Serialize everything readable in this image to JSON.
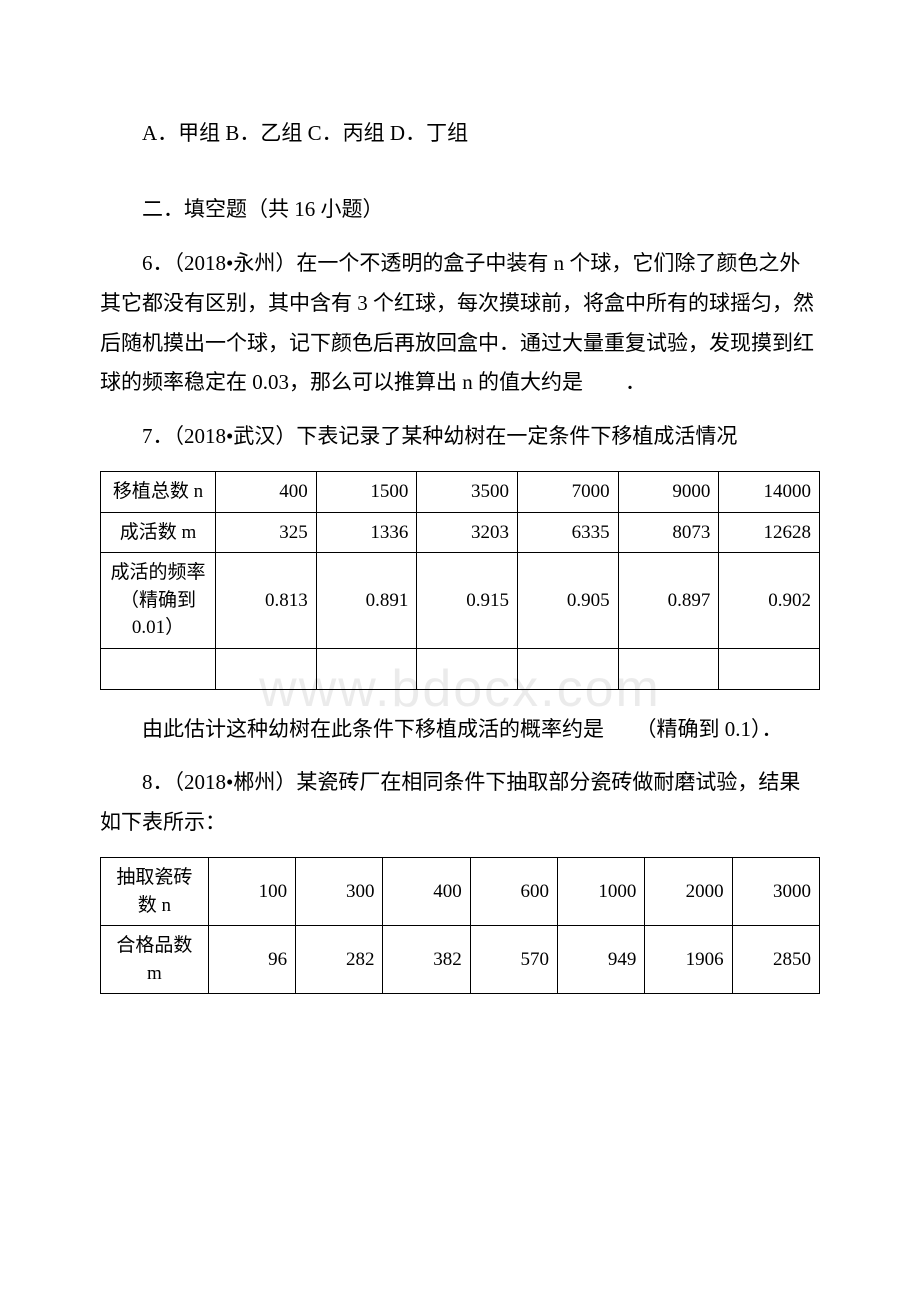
{
  "top_line": "A．甲组 B．乙组 C．丙组 D．丁组",
  "section2_heading": "二．填空题（共 16 小题）",
  "q6": "6．（2018•永州）在一个不透明的盒子中装有 n 个球，它们除了颜色之外其它都没有区别，其中含有 3 个红球，每次摸球前，将盒中所有的球摇匀，然后随机摸出一个球，记下颜色后再放回盒中．通过大量重复试验，发现摸到红球的频率稳定在 0.03，那么可以推算出 n 的值大约是　　．",
  "q7_intro": "7．（2018•武汉）下表记录了某种幼树在一定条件下移植成活情况",
  "q7_after": "由此估计这种幼树在此条件下移植成活的概率约是　　（精确到 0.1）．",
  "q8_intro": "8．（2018•郴州）某瓷砖厂在相同条件下抽取部分瓷砖做耐磨试验，结果如下表所示：",
  "watermark_text": "www.bdocx.com",
  "table1": {
    "row_headers": [
      "移植总数 n",
      "成活数 m",
      "成活的频率（精确到 0.01）"
    ],
    "rows": [
      [
        "400",
        "1500",
        "3500",
        "7000",
        "9000",
        "14000"
      ],
      [
        "325",
        "1336",
        "3203",
        "6335",
        "8073",
        "12628"
      ],
      [
        "0.813",
        "0.891",
        "0.915",
        "0.905",
        "0.897",
        "0.902"
      ]
    ],
    "trailing_empty_row": true
  },
  "table2": {
    "row_headers": [
      "抽取瓷砖数 n",
      "合格品数 m"
    ],
    "rows": [
      [
        "100",
        "300",
        "400",
        "600",
        "1000",
        "2000",
        "3000"
      ],
      [
        "96",
        "282",
        "382",
        "570",
        "949",
        "1906",
        "2850"
      ]
    ]
  }
}
